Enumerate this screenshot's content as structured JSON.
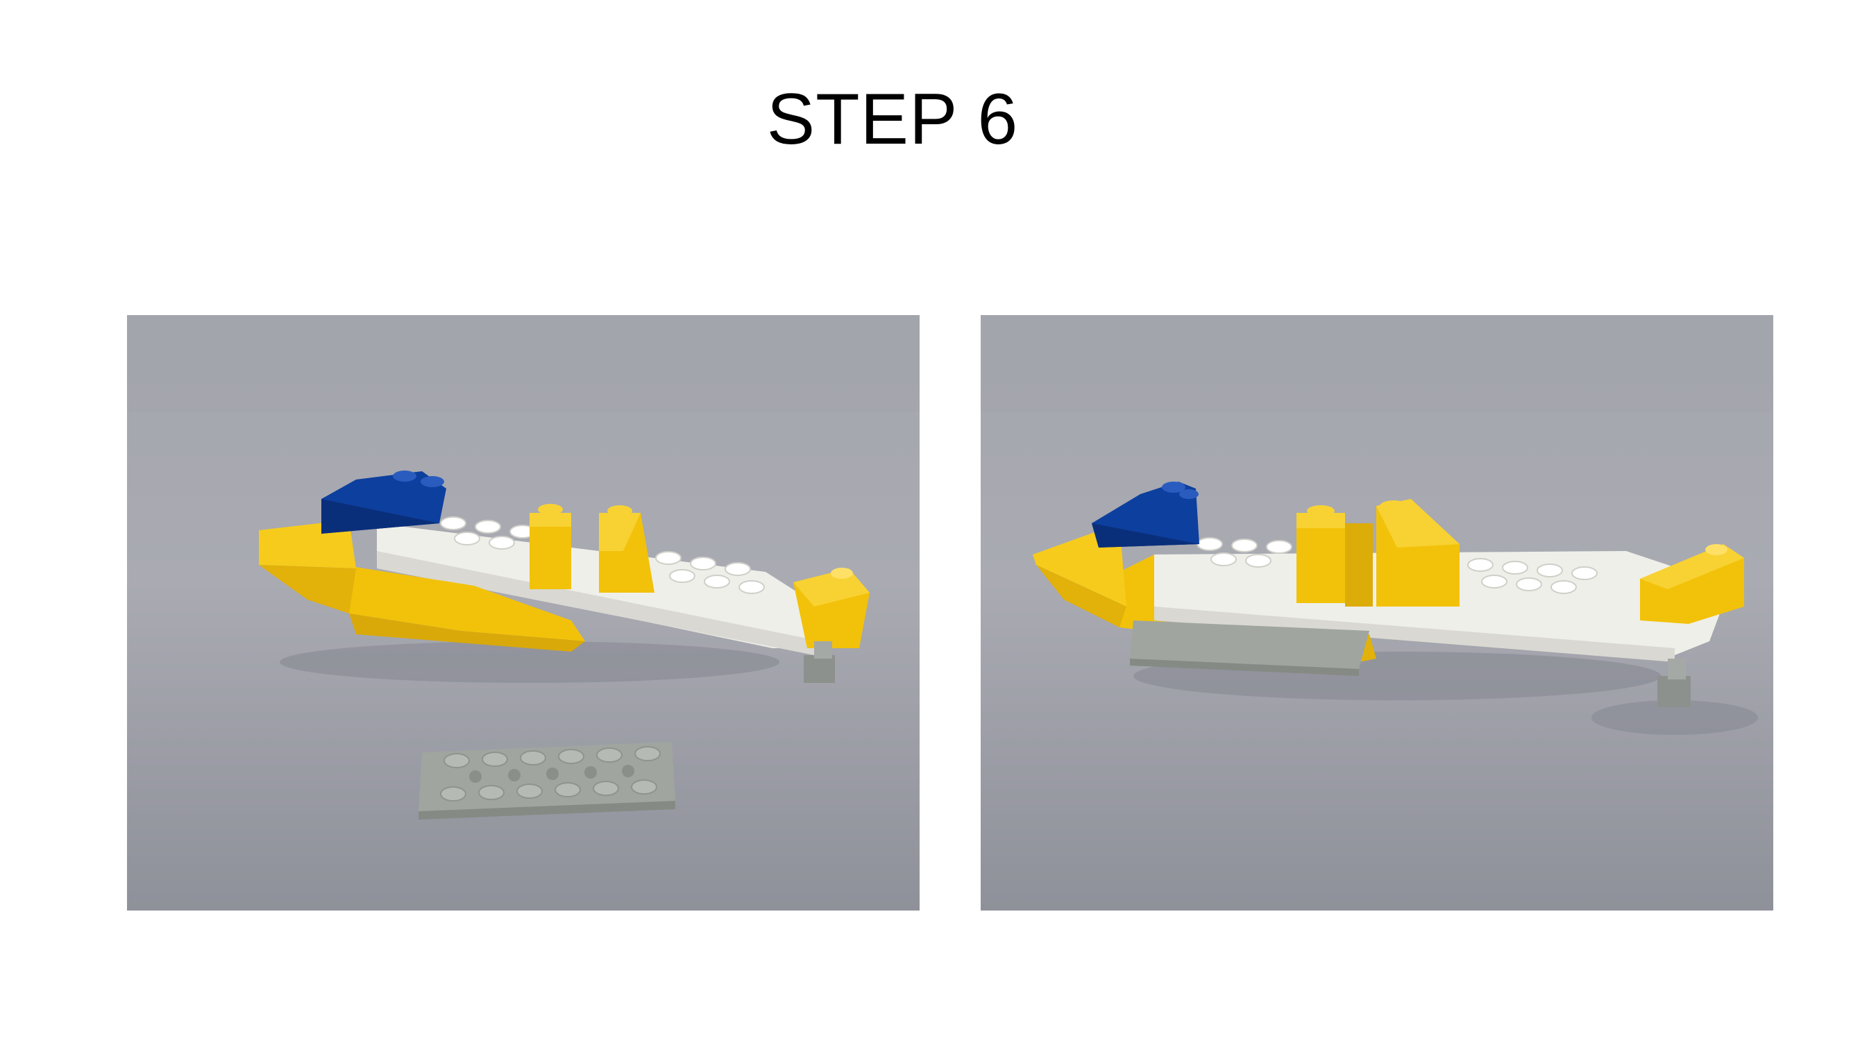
{
  "slide": {
    "title": "STEP 6"
  },
  "photos": [
    {
      "description_icon": "lego-build-step-photo-with-loose-plate-icon",
      "colors": {
        "background_top": "#a9aab2",
        "background_bottom": "#92949c",
        "yellow": "#f2c20a",
        "blue": "#0d3f9e",
        "white": "#efefe9",
        "gray_plate": "#9ea39f"
      }
    },
    {
      "description_icon": "lego-build-step-photo-assembled-icon",
      "colors": {
        "background_top": "#a9aab2",
        "background_bottom": "#92949c",
        "yellow": "#f2c20a",
        "blue": "#0d3f9e",
        "white": "#efefe9",
        "gray_plate": "#9ea39f"
      }
    }
  ]
}
